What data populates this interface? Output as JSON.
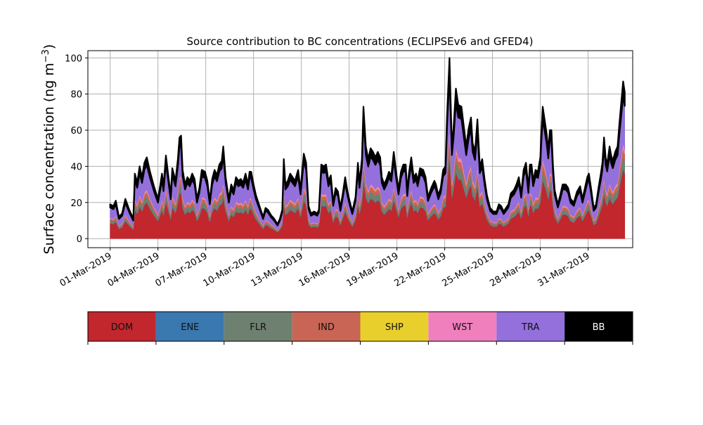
{
  "chart_data": {
    "type": "area",
    "stacked": true,
    "title": "Source contribution to BC concentrations (ECLIPSEv6 and GFED4)",
    "ylabel_main": "Surface concentration (ng m",
    "ylabel_sup": "−3",
    "ylabel_close": ")",
    "ylim": [
      -5,
      104
    ],
    "yticks": [
      0,
      20,
      40,
      60,
      80,
      100
    ],
    "x_start": "2019-03-01",
    "x_end": "2019-04-02",
    "xlim": [
      -1.4,
      32.8
    ],
    "x_ticks": [
      {
        "day": 0,
        "label": "01-Mar-2019"
      },
      {
        "day": 3,
        "label": "04-Mar-2019"
      },
      {
        "day": 6,
        "label": "07-Mar-2019"
      },
      {
        "day": 9,
        "label": "10-Mar-2019"
      },
      {
        "day": 12,
        "label": "13-Mar-2019"
      },
      {
        "day": 15,
        "label": "16-Mar-2019"
      },
      {
        "day": 18,
        "label": "19-Mar-2019"
      },
      {
        "day": 21,
        "label": "22-Mar-2019"
      },
      {
        "day": 24,
        "label": "25-Mar-2019"
      },
      {
        "day": 27,
        "label": "28-Mar-2019"
      },
      {
        "day": 30,
        "label": "31-Mar-2019"
      }
    ],
    "grid": true,
    "total_profile": [
      [
        0.0,
        19
      ],
      [
        0.2,
        18
      ],
      [
        0.35,
        21
      ],
      [
        0.55,
        12
      ],
      [
        0.75,
        14
      ],
      [
        0.95,
        22
      ],
      [
        1.2,
        16
      ],
      [
        1.45,
        11
      ],
      [
        1.55,
        36
      ],
      [
        1.7,
        31
      ],
      [
        1.85,
        40
      ],
      [
        2.0,
        34
      ],
      [
        2.15,
        42
      ],
      [
        2.3,
        45
      ],
      [
        2.5,
        37
      ],
      [
        2.75,
        29
      ],
      [
        3.0,
        22
      ],
      [
        3.15,
        30
      ],
      [
        3.25,
        36
      ],
      [
        3.35,
        29
      ],
      [
        3.5,
        46
      ],
      [
        3.65,
        35
      ],
      [
        3.8,
        24
      ],
      [
        3.9,
        39
      ],
      [
        4.1,
        32
      ],
      [
        4.25,
        44
      ],
      [
        4.35,
        56
      ],
      [
        4.45,
        57
      ],
      [
        4.55,
        38
      ],
      [
        4.7,
        30
      ],
      [
        4.85,
        34
      ],
      [
        5.0,
        32
      ],
      [
        5.15,
        36
      ],
      [
        5.3,
        33
      ],
      [
        5.45,
        22
      ],
      [
        5.6,
        28
      ],
      [
        5.75,
        38
      ],
      [
        5.95,
        37
      ],
      [
        6.1,
        32
      ],
      [
        6.25,
        21
      ],
      [
        6.4,
        33
      ],
      [
        6.55,
        38
      ],
      [
        6.7,
        35
      ],
      [
        6.85,
        41
      ],
      [
        7.0,
        43
      ],
      [
        7.1,
        51
      ],
      [
        7.25,
        34
      ],
      [
        7.45,
        22
      ],
      [
        7.6,
        30
      ],
      [
        7.75,
        27
      ],
      [
        7.9,
        34
      ],
      [
        8.05,
        32
      ],
      [
        8.2,
        33
      ],
      [
        8.35,
        31
      ],
      [
        8.5,
        36
      ],
      [
        8.65,
        30
      ],
      [
        8.75,
        37
      ],
      [
        8.85,
        37
      ],
      [
        9.0,
        30
      ],
      [
        9.15,
        24
      ],
      [
        9.3,
        20
      ],
      [
        9.45,
        16
      ],
      [
        9.6,
        12
      ],
      [
        9.75,
        17
      ],
      [
        9.9,
        16
      ],
      [
        10.1,
        13
      ],
      [
        10.3,
        11
      ],
      [
        10.5,
        8
      ],
      [
        10.65,
        11
      ],
      [
        10.8,
        16
      ],
      [
        10.9,
        44
      ],
      [
        11.0,
        30
      ],
      [
        11.15,
        32
      ],
      [
        11.3,
        36
      ],
      [
        11.45,
        34
      ],
      [
        11.6,
        32
      ],
      [
        11.8,
        38
      ],
      [
        11.95,
        27
      ],
      [
        12.15,
        47
      ],
      [
        12.3,
        42
      ],
      [
        12.45,
        18
      ],
      [
        12.6,
        14
      ],
      [
        12.8,
        15
      ],
      [
        13.0,
        14
      ],
      [
        13.1,
        16
      ],
      [
        13.25,
        41
      ],
      [
        13.4,
        40
      ],
      [
        13.55,
        41
      ],
      [
        13.7,
        32
      ],
      [
        13.85,
        35
      ],
      [
        14.0,
        20
      ],
      [
        14.15,
        28
      ],
      [
        14.3,
        26
      ],
      [
        14.45,
        17
      ],
      [
        14.6,
        25
      ],
      [
        14.75,
        34
      ],
      [
        14.9,
        26
      ],
      [
        15.05,
        20
      ],
      [
        15.2,
        15
      ],
      [
        15.4,
        23
      ],
      [
        15.55,
        42
      ],
      [
        15.65,
        31
      ],
      [
        15.8,
        44
      ],
      [
        15.9,
        73
      ],
      [
        16.05,
        51
      ],
      [
        16.2,
        44
      ],
      [
        16.35,
        50
      ],
      [
        16.5,
        48
      ],
      [
        16.65,
        45
      ],
      [
        16.8,
        48
      ],
      [
        16.95,
        45
      ],
      [
        17.05,
        34
      ],
      [
        17.2,
        30
      ],
      [
        17.35,
        33
      ],
      [
        17.5,
        37
      ],
      [
        17.65,
        35
      ],
      [
        17.8,
        48
      ],
      [
        17.95,
        37
      ],
      [
        18.1,
        27
      ],
      [
        18.25,
        37
      ],
      [
        18.4,
        41
      ],
      [
        18.55,
        41
      ],
      [
        18.65,
        26
      ],
      [
        18.75,
        36
      ],
      [
        18.9,
        45
      ],
      [
        19.05,
        34
      ],
      [
        19.2,
        36
      ],
      [
        19.3,
        32
      ],
      [
        19.45,
        39
      ],
      [
        19.65,
        38
      ],
      [
        19.8,
        34
      ],
      [
        19.95,
        23
      ],
      [
        20.15,
        28
      ],
      [
        20.35,
        32
      ],
      [
        20.45,
        30
      ],
      [
        20.6,
        24
      ],
      [
        20.75,
        28
      ],
      [
        20.9,
        38
      ],
      [
        21.05,
        40
      ],
      [
        21.15,
        69
      ],
      [
        21.3,
        100
      ],
      [
        21.45,
        51
      ],
      [
        21.55,
        61
      ],
      [
        21.7,
        83
      ],
      [
        21.85,
        74
      ],
      [
        22.05,
        73
      ],
      [
        22.2,
        62
      ],
      [
        22.35,
        51
      ],
      [
        22.5,
        61
      ],
      [
        22.65,
        67
      ],
      [
        22.75,
        53
      ],
      [
        22.9,
        48
      ],
      [
        23.05,
        66
      ],
      [
        23.2,
        40
      ],
      [
        23.35,
        44
      ],
      [
        23.5,
        33
      ],
      [
        23.65,
        24
      ],
      [
        23.85,
        17
      ],
      [
        24.05,
        15
      ],
      [
        24.25,
        15
      ],
      [
        24.4,
        19
      ],
      [
        24.55,
        18
      ],
      [
        24.7,
        15
      ],
      [
        24.85,
        17
      ],
      [
        25.0,
        19
      ],
      [
        25.15,
        25
      ],
      [
        25.35,
        27
      ],
      [
        25.5,
        30
      ],
      [
        25.65,
        34
      ],
      [
        25.8,
        25
      ],
      [
        25.95,
        38
      ],
      [
        26.1,
        42
      ],
      [
        26.25,
        28
      ],
      [
        26.35,
        41
      ],
      [
        26.45,
        41
      ],
      [
        26.55,
        32
      ],
      [
        26.7,
        38
      ],
      [
        26.85,
        37
      ],
      [
        27.0,
        45
      ],
      [
        27.05,
        56
      ],
      [
        27.15,
        73
      ],
      [
        27.3,
        64
      ],
      [
        27.4,
        58
      ],
      [
        27.5,
        49
      ],
      [
        27.6,
        60
      ],
      [
        27.7,
        60
      ],
      [
        27.8,
        40
      ],
      [
        27.9,
        27
      ],
      [
        28.0,
        23
      ],
      [
        28.1,
        19
      ],
      [
        28.25,
        24
      ],
      [
        28.4,
        30
      ],
      [
        28.6,
        30
      ],
      [
        28.75,
        28
      ],
      [
        28.9,
        22
      ],
      [
        29.1,
        20
      ],
      [
        29.3,
        26
      ],
      [
        29.5,
        29
      ],
      [
        29.65,
        22
      ],
      [
        29.8,
        28
      ],
      [
        29.95,
        34
      ],
      [
        30.05,
        36
      ],
      [
        30.2,
        27
      ],
      [
        30.35,
        17
      ],
      [
        30.5,
        19
      ],
      [
        30.65,
        28
      ],
      [
        30.8,
        36
      ],
      [
        30.9,
        42
      ],
      [
        31.0,
        56
      ],
      [
        31.1,
        45
      ],
      [
        31.2,
        41
      ],
      [
        31.35,
        51
      ],
      [
        31.45,
        46
      ],
      [
        31.55,
        43
      ],
      [
        31.7,
        48
      ],
      [
        31.85,
        51
      ],
      [
        31.95,
        62
      ],
      [
        32.1,
        77
      ],
      [
        32.2,
        87
      ],
      [
        32.3,
        81
      ]
    ],
    "series_fractions": [
      0.442,
      0.008,
      0.075,
      0.055,
      0.006,
      0.02,
      0.3,
      0.094
    ],
    "series": [
      {
        "name": "DOM",
        "color": "#c1272d"
      },
      {
        "name": "ENE",
        "color": "#3a78b0"
      },
      {
        "name": "FLR",
        "color": "#6e8070"
      },
      {
        "name": "IND",
        "color": "#c96555"
      },
      {
        "name": "SHP",
        "color": "#e8cf2b"
      },
      {
        "name": "WST",
        "color": "#f07fbd"
      },
      {
        "name": "TRA",
        "color": "#9370db"
      },
      {
        "name": "BB",
        "color": "#000000"
      }
    ]
  },
  "legend": {
    "items": [
      {
        "label": "DOM",
        "color": "#c1272d",
        "text_color": "#111111"
      },
      {
        "label": "ENE",
        "color": "#3a78b0",
        "text_color": "#111111"
      },
      {
        "label": "FLR",
        "color": "#6e8070",
        "text_color": "#111111"
      },
      {
        "label": "IND",
        "color": "#c96555",
        "text_color": "#111111"
      },
      {
        "label": "SHP",
        "color": "#e8cf2b",
        "text_color": "#111111"
      },
      {
        "label": "WST",
        "color": "#f07fbd",
        "text_color": "#111111"
      },
      {
        "label": "TRA",
        "color": "#9370db",
        "text_color": "#111111"
      },
      {
        "label": "BB",
        "color": "#000000",
        "text_color": "#ffffff"
      }
    ]
  }
}
